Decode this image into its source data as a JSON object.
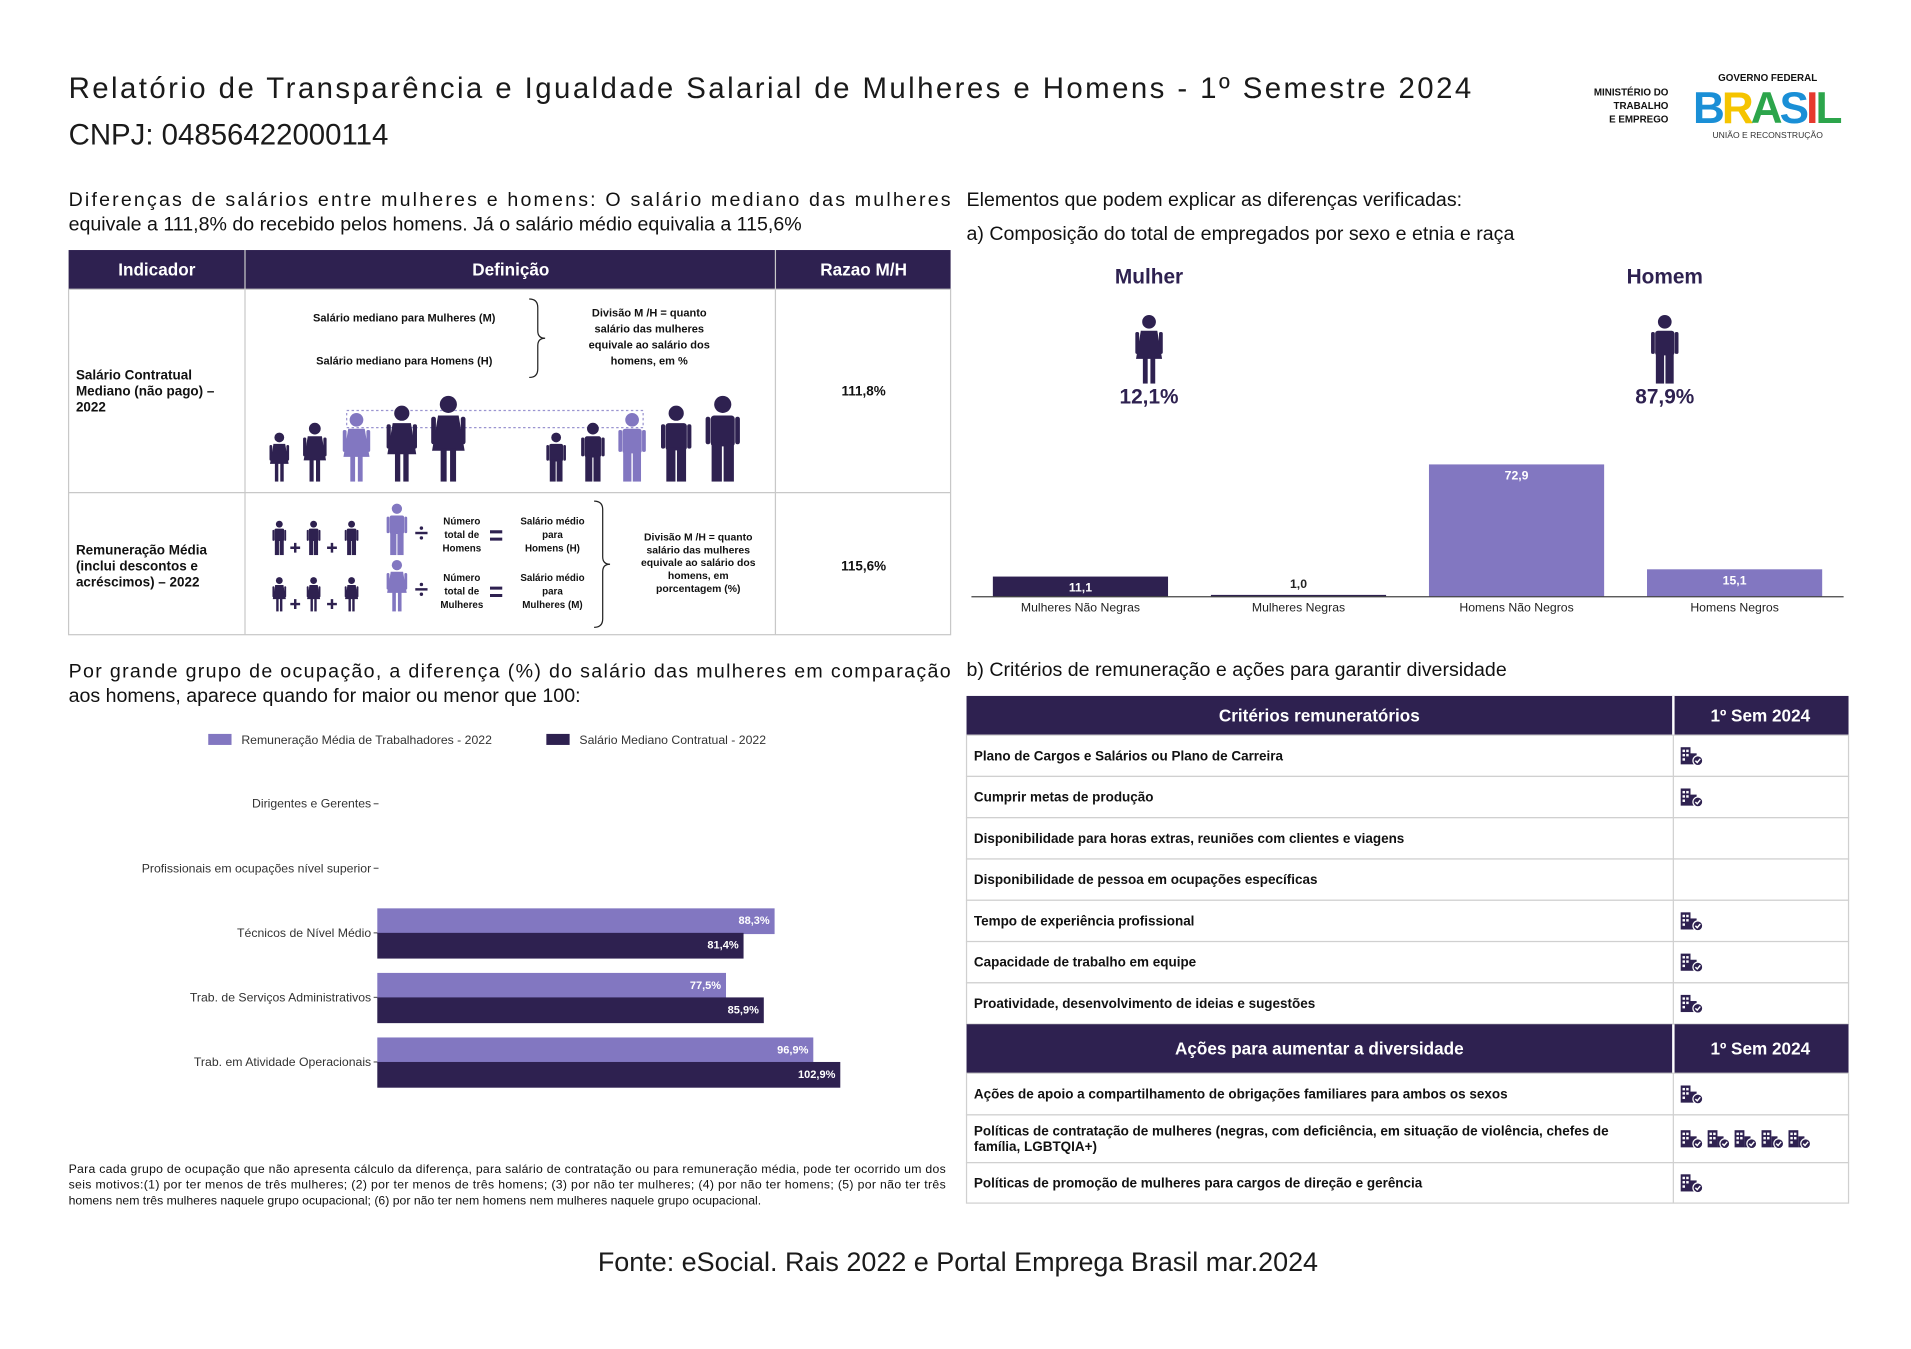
{
  "header": {
    "title": "Relatório de Transparência e Igualdade Salarial de Mulheres e Homens - 1º Semestre 2024",
    "cnpj": "CNPJ: 04856422000114",
    "ministry": [
      "MINISTÉRIO DO",
      "TRABALHO",
      "E EMPREGO"
    ],
    "government": "GOVERNO FEDERAL",
    "brand": "BRASIL",
    "slogan": "UNIÃO E RECONSTRUÇÃO"
  },
  "differences": [
    "Diferenças de salários entre mulheres e homens: O salário mediano das mulheres",
    "equivale a 111,8% do recebido pelos homens. Já o salário médio equivalia a 115,6%"
  ],
  "indicator_table": {
    "headers": [
      "Indicador",
      "Definição",
      "Razao M/H"
    ],
    "rows": [
      {
        "indicator": [
          "Salário Contratual",
          "Mediano (não pago) –",
          "2022"
        ],
        "definition": {
          "women": "Salário mediano para Mulheres (M)",
          "men": "Salário mediano para Homens (H)",
          "division": [
            "Divisão M /H = quanto",
            "salário das mulheres",
            "equivale ao salário dos",
            "homens, em %"
          ]
        },
        "ratio": "111,8%"
      },
      {
        "indicator": [
          "Remuneração Média",
          "(inclui descontos e",
          "acréscimos) – 2022"
        ],
        "definition": {
          "men_count": [
            "Número",
            "total de",
            "Homens"
          ],
          "men_salary": [
            "Salário médio",
            "para",
            "Homens (H)"
          ],
          "women_count": [
            "Número",
            "total de",
            "Mulheres"
          ],
          "women_salary": [
            "Salário médio",
            "para",
            "Mulheres (M)"
          ],
          "division": [
            "Divisão M /H = quanto",
            "salário das mulheres",
            "equivale ao salário dos",
            "homens, em",
            "porcentagem (%)"
          ]
        },
        "ratio": "115,6%"
      }
    ]
  },
  "explain_heading": "Elementos que podem explicar as diferenças verificadas:",
  "criteria_heading": "b) Critérios de remuneração e ações para garantir diversidade",
  "chart_data": [
    {
      "type": "bar",
      "title": "a) Composição do total de empregados por sexo e etnia e raça",
      "groups": [
        {
          "name": "Mulher",
          "value": 12.1,
          "value_label": "12,1%"
        },
        {
          "name": "Homem",
          "value": 87.9,
          "value_label": "87,9%"
        }
      ],
      "categories": [
        "Mulheres Não Negras",
        "Mulheres Negras",
        "Homens Não Negros",
        "Homens Negros"
      ],
      "values": [
        11.1,
        1.0,
        72.9,
        15.1
      ],
      "value_labels": [
        "11,1",
        "1,0",
        "72,9",
        "15,1"
      ],
      "colors": [
        "#2e2150",
        "#2e2150",
        "#8277c1",
        "#8277c1"
      ]
    },
    {
      "type": "hbar",
      "title": [
        "Por grande grupo de ocupação, a diferença (%) do salário das mulheres em comparação",
        "aos homens, aparece quando for maior ou menor que 100:"
      ],
      "categories": [
        "Dirigentes e Gerentes",
        "Profissionais em ocupações nível superior",
        "Técnicos de Nível Médio",
        "Trab. de Serviços Administrativos",
        "Trab. em Atividade Operacionais"
      ],
      "series": [
        {
          "name": "Remuneração Média de Trabalhadores - 2022",
          "color": "#8277c1",
          "values": [
            null,
            null,
            88.3,
            77.5,
            96.9
          ],
          "value_labels": [
            null,
            null,
            "88,3%",
            "77,5%",
            "96,9%"
          ]
        },
        {
          "name": "Salário Mediano Contratual - 2022",
          "color": "#2e2150",
          "values": [
            null,
            null,
            81.4,
            85.9,
            102.9
          ],
          "value_labels": [
            null,
            null,
            "81,4%",
            "85,9%",
            "102,9%"
          ]
        }
      ],
      "note": [
        "Para cada grupo de ocupação que não apresenta cálculo da diferença, para salário de contratação ou para remuneração média, pode ter ocorrido um dos",
        "seis motivos:(1) por ter menos de três mulheres; (2) por ter menos de três homens; (3) por não ter mulheres; (4) por não ter homens; (5) por não ter três",
        "homens nem três mulheres naquele grupo ocupacional; (6) por não ter nem homens nem mulheres naquele grupo ocupacional."
      ]
    }
  ],
  "criteria_table": {
    "headers": [
      "Critérios remuneratórios",
      "1º Sem 2024"
    ],
    "rows": [
      {
        "text": [
          "Plano de Cargos e Salários ou Plano de Carreira"
        ],
        "icons": 1
      },
      {
        "text": [
          "Cumprir metas de produção"
        ],
        "icons": 1
      },
      {
        "text": [
          "Disponibilidade para horas extras, reuniões com clientes e viagens"
        ],
        "icons": 0
      },
      {
        "text": [
          "Disponibilidade de pessoa em ocupações específicas"
        ],
        "icons": 0
      },
      {
        "text": [
          "Tempo de experiência profissional"
        ],
        "icons": 1
      },
      {
        "text": [
          "Capacidade de trabalho em equipe"
        ],
        "icons": 1
      },
      {
        "text": [
          "Proatividade, desenvolvimento de ideias e sugestões"
        ],
        "icons": 1
      }
    ]
  },
  "actions_table": {
    "headers": [
      "Ações para aumentar a diversidade",
      "1º Sem 2024"
    ],
    "rows": [
      {
        "text": [
          "Ações de apoio a compartilhamento de obrigações familiares para ambos os sexos"
        ],
        "icons": 1
      },
      {
        "text": [
          "Políticas de contratação de mulheres (negras, com deficiência, em situação de violência, chefes de",
          "família, LGBTQIA+)"
        ],
        "icons": 5
      },
      {
        "text": [
          "Políticas de promoção de mulheres para cargos de direção e gerência"
        ],
        "icons": 1
      }
    ]
  },
  "footer": "Fonte: eSocial. Rais 2022 e Portal Emprega Brasil mar.2024"
}
